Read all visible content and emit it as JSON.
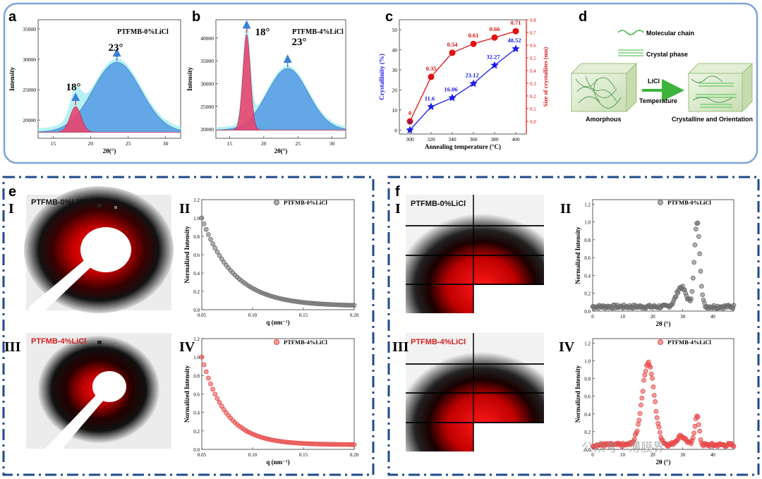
{
  "panels": {
    "a": "a",
    "b": "b",
    "c": "c",
    "d": "d",
    "e": "e",
    "f": "f"
  },
  "roman": {
    "I": "I",
    "II": "II",
    "III": "III",
    "IV": "IV"
  },
  "colors": {
    "frame_blue": "#7da2d8",
    "dash_blue": "#1f4a8c",
    "peak_red": "#e8456e",
    "peak_blue": "#5a9fe6",
    "peak_cyan": "#a8eef0",
    "c_blue": "#1a1ae6",
    "c_red": "#e01010",
    "scatter_gray": "#6e6e6e",
    "scatter_red": "#e84a4a"
  },
  "chart_data": [
    {
      "id": "a",
      "type": "area",
      "sample_label": "PTFMB-0%LiCl",
      "ylabel": "Intensity",
      "xlabel": "2θ(°)",
      "xlim": [
        13,
        32
      ],
      "ylim": [
        17000,
        36500
      ],
      "xticks": [
        "15",
        "20",
        "25",
        "30"
      ],
      "yticks": [
        "20000",
        "25000",
        "30000",
        "35000"
      ],
      "baseline": 18000,
      "peaks": [
        {
          "name": "18°",
          "center": 18,
          "height": 4200,
          "width": 0.75
        },
        {
          "name": "23°",
          "center": 23.5,
          "height": 11500,
          "width": 3.2
        }
      ],
      "annotations": [
        "18°",
        "23°"
      ]
    },
    {
      "id": "b",
      "type": "area",
      "sample_label": "PTFMB-4%LiCl",
      "ylabel": "Intensity",
      "xlabel": "2θ(°)",
      "xlim": [
        13,
        32
      ],
      "ylim": [
        18000,
        44000
      ],
      "xticks": [
        "15",
        "20",
        "25",
        "30"
      ],
      "yticks": [
        "20000",
        "25000",
        "30000",
        "35000",
        "40000"
      ],
      "baseline": 19800,
      "peaks": [
        {
          "name": "18°",
          "center": 17.5,
          "height": 21000,
          "width": 0.55
        },
        {
          "name": "23°",
          "center": 23.5,
          "height": 13500,
          "width": 3.0
        }
      ],
      "annotations": [
        "18°",
        "23°"
      ]
    },
    {
      "id": "c",
      "type": "line",
      "xlabel": "Annealing temperature (°C)",
      "ylabel": "Crystallinity (%)",
      "ylabel2": "Size of crystallites (nm)",
      "x": [
        300,
        320,
        340,
        360,
        380,
        400
      ],
      "xticks": [
        "300",
        "320",
        "340",
        "360",
        "380",
        "400"
      ],
      "xlim": [
        290,
        410
      ],
      "ylim": [
        -2,
        55
      ],
      "ylim2": [
        -0.1,
        0.8
      ],
      "yticks": [
        "0",
        "10",
        "20",
        "30",
        "40",
        "50"
      ],
      "yticks2": [
        "0.0",
        "0.1",
        "0.2",
        "0.3",
        "0.4",
        "0.5",
        "0.6",
        "0.7",
        "0.8"
      ],
      "series": [
        {
          "name": "Crystallinity",
          "axis": "left",
          "values": [
            0,
            11.6,
            16.06,
            23.12,
            32.27,
            40.52
          ],
          "labels": [
            "0",
            "11.6",
            "16.06",
            "23.12",
            "32.27",
            "40.52"
          ]
        },
        {
          "name": "Size",
          "axis": "right",
          "values": [
            0,
            0.35,
            0.54,
            0.61,
            0.66,
            0.71
          ],
          "labels": [
            "0",
            "0.35",
            "0.54",
            "0.61",
            "0.66",
            "0.71"
          ]
        }
      ]
    },
    {
      "id": "eII",
      "type": "scatter",
      "legend": "PTFMB-0%LiCl",
      "xlabel": "q (nm⁻¹)",
      "ylabel": "Normalized Intensity",
      "xlim": [
        0.05,
        0.2
      ],
      "ylim": [
        0,
        1.2
      ],
      "xticks": [
        "0.05",
        "0.10",
        "0.15",
        "0.20"
      ],
      "yticks": [
        "0.0",
        "0.2",
        "0.4",
        "0.6",
        "0.8",
        "1.0",
        "1.2"
      ],
      "decay": {
        "start": 1.0,
        "floor": 0.04,
        "k": 32
      }
    },
    {
      "id": "eIV",
      "type": "scatter",
      "legend": "PTFMB-4%LiCl",
      "xlabel": "q (nm⁻¹)",
      "ylabel": "Normalized Intensity",
      "xlim": [
        0.05,
        0.2
      ],
      "ylim": [
        0,
        1.2
      ],
      "xticks": [
        "0.05",
        "0.10",
        "0.15",
        "0.20"
      ],
      "yticks": [
        "0.0",
        "0.2",
        "0.4",
        "0.6",
        "0.8",
        "1.0",
        "1.2"
      ],
      "decay": {
        "start": 1.0,
        "floor": 0.05,
        "k": 42
      }
    },
    {
      "id": "fII",
      "type": "scatter",
      "legend": "PTFMB-0%LiCl",
      "xlabel": "2θ (°)",
      "ylabel": "Normalized Intensity",
      "xlim": [
        0,
        47
      ],
      "ylim": [
        0,
        1.25
      ],
      "xticks": [
        "0",
        "10",
        "20",
        "30",
        "40"
      ],
      "yticks": [
        "0.0",
        "0.2",
        "0.4",
        "0.6",
        "0.8",
        "1.0",
        "1.2"
      ],
      "baseline": 0.05,
      "peaks": [
        {
          "center": 29.5,
          "height": 0.22,
          "width": 1.6
        },
        {
          "center": 34.8,
          "height": 0.95,
          "width": 0.9
        }
      ]
    },
    {
      "id": "fIV",
      "type": "scatter",
      "legend": "PTFMB-4%LiCl",
      "xlabel": "2θ (°)",
      "ylabel": "Normalized Intensity",
      "xlim": [
        0,
        47
      ],
      "ylim": [
        0,
        1.25
      ],
      "xticks": [
        "0",
        "10",
        "20",
        "30",
        "40"
      ],
      "yticks": [
        "0.0",
        "0.2",
        "0.4",
        "0.6",
        "0.8",
        "1.0",
        "1.2"
      ],
      "baseline": 0.05,
      "peaks": [
        {
          "center": 18.5,
          "height": 0.93,
          "width": 2.0
        },
        {
          "center": 29.5,
          "height": 0.1,
          "width": 1.5
        },
        {
          "center": 34.7,
          "height": 0.34,
          "width": 0.7
        }
      ]
    }
  ],
  "schematic": {
    "legend_chain": "Molecular chain",
    "legend_crystal": "Crystal phase",
    "arrow_top": "LiCl",
    "arrow_bottom": "Temperature",
    "left_caption": "Amorphous",
    "right_caption": "Crystalline and Orientation"
  },
  "saxs": {
    "top_label": "PTFMB-0%LiCl",
    "bottom_label": "PTFMB-4%LiCl"
  },
  "waxs": {
    "top_label": "PTFMB-0%LiCl",
    "bottom_label": "PTFMB-4%LiCl"
  },
  "watermark": "公众号 · 薄膜界"
}
